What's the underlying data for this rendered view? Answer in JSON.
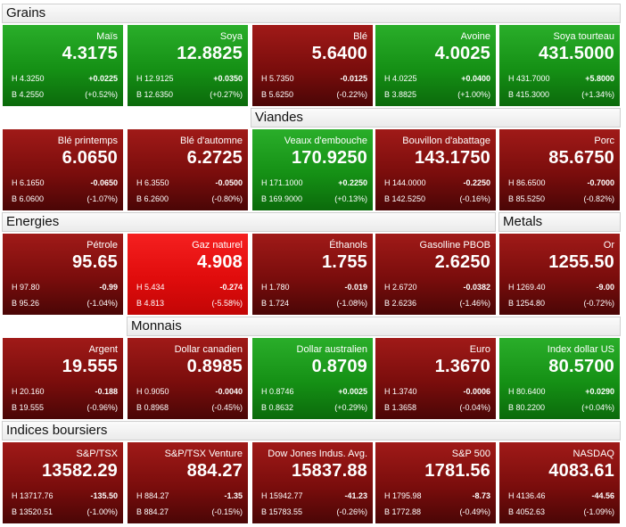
{
  "sections": {
    "grains": "Grains",
    "viandes": "Viandes",
    "energies": "Energies",
    "metals": "Metals",
    "monnais": "Monnais",
    "indices": "Indices boursiers"
  },
  "rows": [
    [
      {
        "name": "Maïs",
        "price": "4.3175",
        "high": "H 4.3250",
        "low": "B 4.2550",
        "change": "+0.0225",
        "pct": "(+0.52%)",
        "trend": "up"
      },
      {
        "name": "Soya",
        "price": "12.8825",
        "high": "H 12.9125",
        "low": "B 12.6350",
        "change": "+0.0350",
        "pct": "(+0.27%)",
        "trend": "up"
      },
      {
        "name": "Blé",
        "price": "5.6400",
        "high": "H 5.7350",
        "low": "B 5.6250",
        "change": "-0.0125",
        "pct": "(-0.22%)",
        "trend": "dn"
      },
      {
        "name": "Avoine",
        "price": "4.0025",
        "high": "H 4.0225",
        "low": "B 3.8825",
        "change": "+0.0400",
        "pct": "(+1.00%)",
        "trend": "up"
      },
      {
        "name": "Soya tourteau",
        "price": "431.5000",
        "high": "H 431.7000",
        "low": "B 415.3000",
        "change": "+5.8000",
        "pct": "(+1.34%)",
        "trend": "up"
      }
    ],
    [
      {
        "name": "Blé printemps",
        "price": "6.0650",
        "high": "H 6.1650",
        "low": "B 6.0600",
        "change": "-0.0650",
        "pct": "(-1.07%)",
        "trend": "dn"
      },
      {
        "name": "Blé d'automne",
        "price": "6.2725",
        "high": "H 6.3550",
        "low": "B 6.2600",
        "change": "-0.0500",
        "pct": "(-0.80%)",
        "trend": "dn"
      },
      {
        "name": "Veaux d'embouche",
        "price": "170.9250",
        "high": "H 171.1000",
        "low": "B 169.9000",
        "change": "+0.2250",
        "pct": "(+0.13%)",
        "trend": "up"
      },
      {
        "name": "Bouvillon d'abattage",
        "price": "143.1750",
        "high": "H 144.0000",
        "low": "B 142.5250",
        "change": "-0.2250",
        "pct": "(-0.16%)",
        "trend": "dn"
      },
      {
        "name": "Porc",
        "price": "85.6750",
        "high": "H 86.6500",
        "low": "B 85.5250",
        "change": "-0.7000",
        "pct": "(-0.82%)",
        "trend": "dn"
      }
    ],
    [
      {
        "name": "Pétrole",
        "price": "95.65",
        "high": "H 97.80",
        "low": "B 95.26",
        "change": "-0.99",
        "pct": "(-1.04%)",
        "trend": "dn"
      },
      {
        "name": "Gaz naturel",
        "price": "4.908",
        "high": "H 5.434",
        "low": "B 4.813",
        "change": "-0.274",
        "pct": "(-5.58%)",
        "trend": "hot"
      },
      {
        "name": "Éthanols",
        "price": "1.755",
        "high": "H 1.780",
        "low": "B 1.724",
        "change": "-0.019",
        "pct": "(-1.08%)",
        "trend": "dn"
      },
      {
        "name": "Gasolline PBOB",
        "price": "2.6250",
        "high": "H 2.6720",
        "low": "B 2.6236",
        "change": "-0.0382",
        "pct": "(-1.46%)",
        "trend": "dn"
      },
      {
        "name": "Or",
        "price": "1255.50",
        "high": "H 1269.40",
        "low": "B 1254.80",
        "change": "-9.00",
        "pct": "(-0.72%)",
        "trend": "dn"
      }
    ],
    [
      {
        "name": "Argent",
        "price": "19.555",
        "high": "H 20.160",
        "low": "B 19.555",
        "change": "-0.188",
        "pct": "(-0.96%)",
        "trend": "dn"
      },
      {
        "name": "Dollar canadien",
        "price": "0.8985",
        "high": "H 0.9050",
        "low": "B 0.8968",
        "change": "-0.0040",
        "pct": "(-0.45%)",
        "trend": "dn"
      },
      {
        "name": "Dollar australien",
        "price": "0.8709",
        "high": "H 0.8746",
        "low": "B 0.8632",
        "change": "+0.0025",
        "pct": "(+0.29%)",
        "trend": "up"
      },
      {
        "name": "Euro",
        "price": "1.3670",
        "high": "H 1.3740",
        "low": "B 1.3658",
        "change": "-0.0006",
        "pct": "(-0.04%)",
        "trend": "dn"
      },
      {
        "name": "Index dollar US",
        "price": "80.5700",
        "high": "H 80.6400",
        "low": "B 80.2200",
        "change": "+0.0290",
        "pct": "(+0.04%)",
        "trend": "up"
      }
    ],
    [
      {
        "name": "S&P/TSX",
        "price": "13582.29",
        "high": "H 13717.76",
        "low": "B 13520.51",
        "change": "-135.50",
        "pct": "(-1.00%)",
        "trend": "dn"
      },
      {
        "name": "S&P/TSX Venture",
        "price": "884.27",
        "high": "H 884.27",
        "low": "B 884.27",
        "change": "-1.35",
        "pct": "(-0.15%)",
        "trend": "dn"
      },
      {
        "name": "Dow Jones Indus. Avg.",
        "price": "15837.88",
        "high": "H 15942.77",
        "low": "B 15783.55",
        "change": "-41.23",
        "pct": "(-0.26%)",
        "trend": "dn"
      },
      {
        "name": "S&P 500",
        "price": "1781.56",
        "high": "H 1795.98",
        "low": "B 1772.88",
        "change": "-8.73",
        "pct": "(-0.49%)",
        "trend": "dn"
      },
      {
        "name": "NASDAQ",
        "price": "4083.61",
        "high": "H 4136.46",
        "low": "B 4052.63",
        "change": "-44.56",
        "pct": "(-1.09%)",
        "trend": "dn"
      }
    ]
  ]
}
